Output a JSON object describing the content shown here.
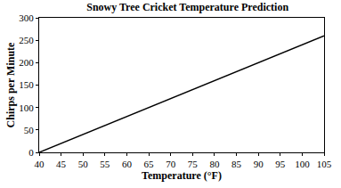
{
  "chart_data": {
    "type": "line",
    "title": "Snowy Tree Cricket Temperature Prediction",
    "x_label": "Temperature (°F)",
    "y_label": "Chirps per Minute",
    "x": [
      40,
      105
    ],
    "values": [
      0,
      260
    ],
    "color": "#000000",
    "xlim": [
      40,
      105
    ],
    "ylim": [
      0,
      300
    ],
    "xticks": [
      40,
      45,
      50,
      55,
      60,
      65,
      70,
      75,
      80,
      85,
      90,
      95,
      100,
      105
    ],
    "yticks": [
      0,
      50,
      100,
      150,
      200,
      250,
      300
    ],
    "grid": false
  }
}
